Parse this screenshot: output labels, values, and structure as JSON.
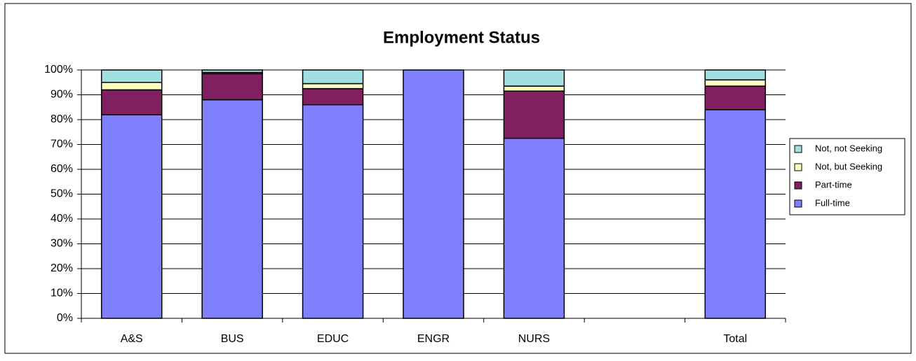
{
  "chart_data": {
    "type": "stacked_bar",
    "title": "Employment Status",
    "categories": [
      "A&S",
      "BUS",
      "EDUC",
      "ENGR",
      "NURS",
      null,
      "Total"
    ],
    "series": [
      {
        "name": "Full-time",
        "color": "#8080ff",
        "values": [
          82,
          88,
          86,
          100,
          72.5,
          null,
          84
        ]
      },
      {
        "name": "Part-time",
        "color": "#802060",
        "values": [
          10,
          10.5,
          6.5,
          0,
          19,
          null,
          9.5
        ]
      },
      {
        "name": "Not, but Seeking",
        "color": "#ffffc0",
        "values": [
          3,
          0.5,
          2,
          0,
          2,
          null,
          2.5
        ]
      },
      {
        "name": "Not, not Seeking",
        "color": "#a0e0e0",
        "values": [
          5,
          1,
          5.5,
          0,
          6.5,
          null,
          4
        ]
      }
    ],
    "ylim": [
      0,
      100
    ],
    "yticks": [
      {
        "value": 0,
        "label": "0%"
      },
      {
        "value": 10,
        "label": "10%"
      },
      {
        "value": 20,
        "label": "20%"
      },
      {
        "value": 30,
        "label": "30%"
      },
      {
        "value": 40,
        "label": "40%"
      },
      {
        "value": 50,
        "label": "50%"
      },
      {
        "value": 60,
        "label": "60%"
      },
      {
        "value": 70,
        "label": "70%"
      },
      {
        "value": 80,
        "label": "80%"
      },
      {
        "value": 90,
        "label": "90%"
      },
      {
        "value": 100,
        "label": "100%"
      }
    ],
    "grid": true,
    "legend": "right"
  }
}
